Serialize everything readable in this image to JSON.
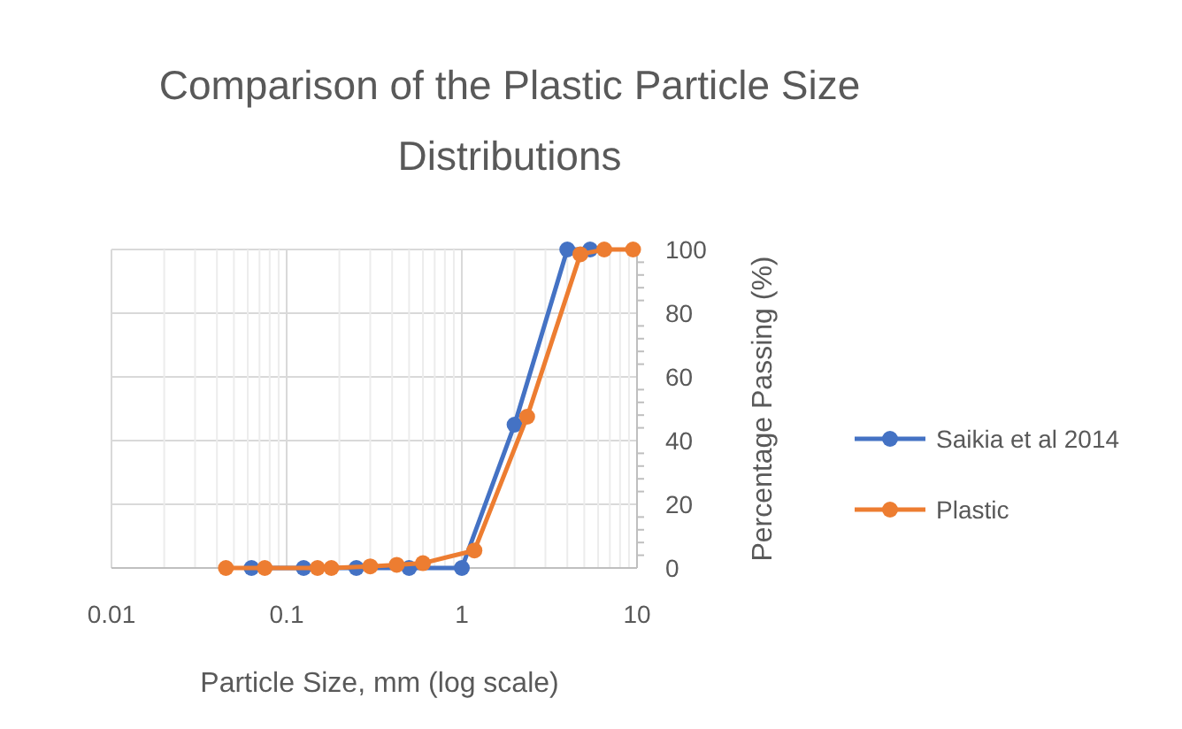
{
  "chart_data": {
    "type": "line",
    "title": "Comparison of the Plastic Particle Size Distributions",
    "xlabel": "Particle Size, mm (log scale)",
    "ylabel": "Percentage Passing (%)",
    "log": "x",
    "xlim": [
      0.01,
      10
    ],
    "xticks": [
      0.01,
      0.1,
      1,
      10
    ],
    "ylim": [
      0,
      100
    ],
    "yticks": [
      0,
      20,
      40,
      60,
      80,
      100
    ],
    "grid": true,
    "legend": "right",
    "marker": "circle",
    "line_style": "solid",
    "series": [
      {
        "name": "Saikia et al 2014",
        "color": "#4472c4",
        "x": [
          0.063,
          0.125,
          0.25,
          0.5,
          1,
          2,
          4,
          5.4
        ],
        "values": [
          0,
          0,
          0,
          0,
          0,
          45,
          100,
          100
        ]
      },
      {
        "name": "Plastic",
        "color": "#ed7d31",
        "x": [
          0.045,
          0.075,
          0.15,
          0.18,
          0.3,
          0.425,
          0.6,
          1.18,
          2.36,
          4.75,
          6.5,
          9.5
        ],
        "values": [
          0,
          0,
          0,
          0,
          0.5,
          1,
          1.5,
          5.5,
          47.5,
          98.5,
          100,
          100
        ]
      }
    ]
  }
}
